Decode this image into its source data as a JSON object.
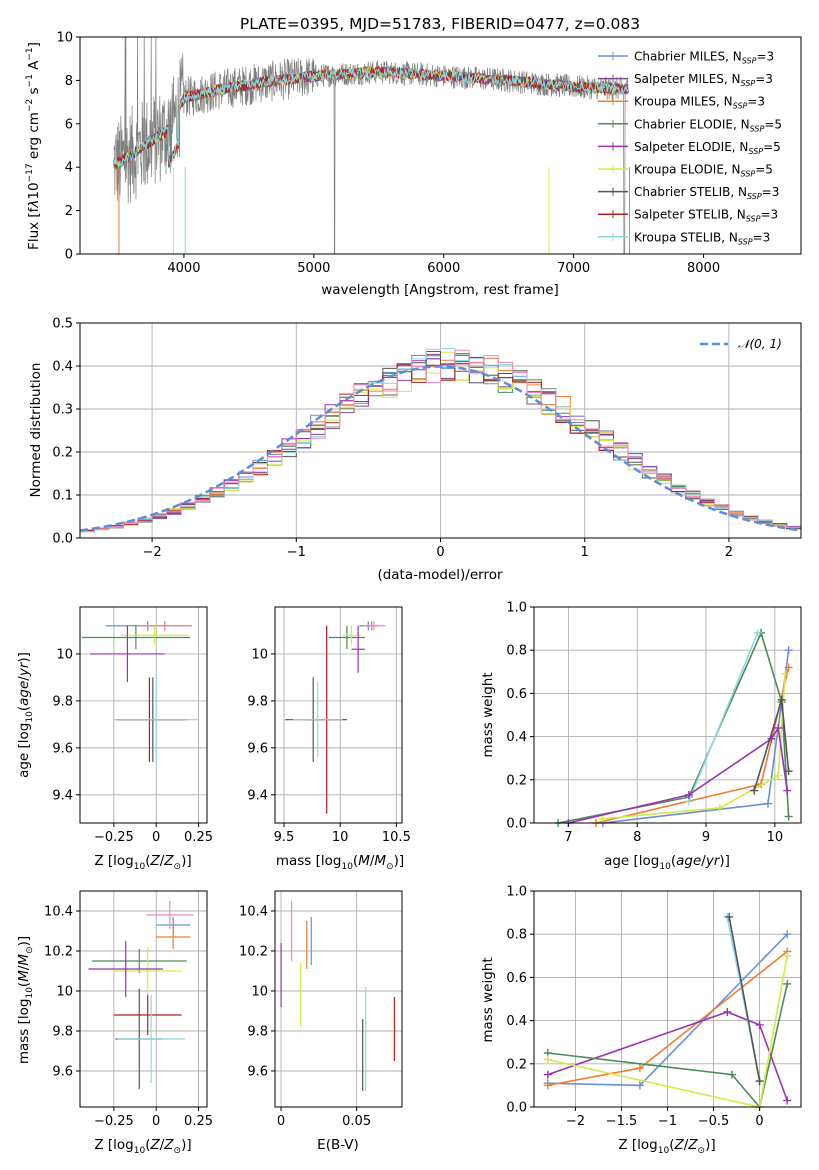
{
  "title": "PLATE=0395, MJD=51783, FIBERID=0477, z=0.083",
  "colors": {
    "chabrier_miles": "#6b8fd6",
    "salpeter_miles": "#7b4a8a",
    "kroupa_miles": "#f07c30",
    "chabrier_elodie": "#4e8a5a",
    "salpeter_elodie": "#9a32b5",
    "kroupa_elodie": "#d6e84a",
    "chabrier_stelib": "#555555",
    "salpeter_stelib": "#b22020",
    "kroupa_stelib": "#8fd8e0",
    "data": "#808080",
    "normal_curve": "#5b8fd6",
    "pink": "#ee88bb"
  },
  "chart_data": [
    {
      "id": "spectrum",
      "type": "line",
      "xlabel": "wavelength [Angstrom, rest frame]",
      "ylabel": "Flux [fλ10⁻¹⁷ erg cm⁻² s⁻¹ A⁻¹]",
      "xlim": [
        3200,
        8750
      ],
      "ylim": [
        0,
        10
      ],
      "xticks": [
        4000,
        5000,
        6000,
        7000,
        8000
      ],
      "yticks": [
        0,
        2,
        4,
        6,
        8,
        10
      ],
      "legend_position": "upper-right",
      "series": [
        {
          "name": "Chabrier MILES, N_SSP=3",
          "color_key": "chabrier_miles"
        },
        {
          "name": "Salpeter MILES, N_SSP=3",
          "color_key": "salpeter_miles"
        },
        {
          "name": "Kroupa MILES, N_SSP=3",
          "color_key": "kroupa_miles"
        },
        {
          "name": "Chabrier ELODIE, N_SSP=5",
          "color_key": "chabrier_elodie"
        },
        {
          "name": "Salpeter ELODIE, N_SSP=5",
          "color_key": "salpeter_elodie"
        },
        {
          "name": "Kroupa ELODIE, N_SSP=5",
          "color_key": "kroupa_elodie"
        },
        {
          "name": "Chabrier STELIB, N_SSP=3",
          "color_key": "chabrier_stelib"
        },
        {
          "name": "Salpeter STELIB, N_SSP=3",
          "color_key": "salpeter_stelib"
        },
        {
          "name": "Kroupa STELIB, N_SSP=3",
          "color_key": "kroupa_stelib"
        }
      ],
      "continuum_x": [
        3500,
        3700,
        3900,
        4000,
        4300,
        4600,
        5000,
        5500,
        6000,
        6500,
        7000,
        7400
      ],
      "continuum_y": [
        4.2,
        5.0,
        5.8,
        7.2,
        7.6,
        7.9,
        8.2,
        8.4,
        8.2,
        8.0,
        7.7,
        7.6
      ]
    },
    {
      "id": "residuals",
      "type": "line",
      "xlabel": "(data-model)/error",
      "ylabel": "Normed distribution",
      "xlim": [
        -2.5,
        2.5
      ],
      "ylim": [
        0,
        0.5
      ],
      "xticks": [
        -2,
        -1,
        0,
        1,
        2
      ],
      "yticks": [
        0.0,
        0.1,
        0.2,
        0.3,
        0.4,
        0.5
      ],
      "legend": "𝒩(0, 1)",
      "grid": true,
      "bin_width": 0.1
    },
    {
      "id": "age_vs_z",
      "type": "scatter",
      "xlabel": "Z [log₁₀(Z/Z⊙)]",
      "ylabel": "age  [log₁₀(age/yr)]",
      "xlim": [
        -0.45,
        0.3
      ],
      "ylim": [
        9.28,
        10.2
      ],
      "xticks": [
        -0.25,
        0.0,
        0.25
      ],
      "yticks": [
        9.4,
        9.6,
        9.8,
        10.0
      ],
      "grid": true,
      "points": [
        {
          "x": -0.05,
          "y": 10.12,
          "xerr": 0.25,
          "yerr": 0.02,
          "c": "chabrier_miles"
        },
        {
          "x": 0.05,
          "y": 10.12,
          "xerr": 0.16,
          "yerr": 0.02,
          "c": "kroupa_miles"
        },
        {
          "x": 0.05,
          "y": 10.12,
          "xerr": 0.16,
          "yerr": 0.02,
          "c": "pink"
        },
        {
          "x": -0.12,
          "y": 10.07,
          "xerr": 0.32,
          "yerr": 0.05,
          "c": "chabrier_elodie"
        },
        {
          "x": -0.01,
          "y": 10.08,
          "xerr": 0.2,
          "yerr": 0.04,
          "c": "kroupa_elodie"
        },
        {
          "x": -0.17,
          "y": 10.0,
          "xerr": 0.22,
          "yerr": 0.12,
          "c": "salpeter_elodie"
        },
        {
          "x": -0.02,
          "y": 9.72,
          "xerr": 0.2,
          "yerr": 0.18,
          "c": "chabrier_stelib"
        },
        {
          "x": -0.04,
          "y": 9.72,
          "xerr": 0.2,
          "yerr": 0.18,
          "c": "salpeter_stelib"
        },
        {
          "x": 0.0,
          "y": 9.72,
          "xerr": 0.25,
          "yerr": 0.18,
          "c": "kroupa_stelib"
        }
      ]
    },
    {
      "id": "age_vs_mass",
      "type": "scatter",
      "xlabel": "mass [log₁₀(M/M⊙)]",
      "ylabel": "",
      "xlim": [
        9.42,
        10.55
      ],
      "ylim": [
        9.28,
        10.2
      ],
      "xticks": [
        9.5,
        10.0,
        10.5
      ],
      "yticks": [
        9.4,
        9.6,
        9.8,
        10.0
      ],
      "grid": true,
      "points": [
        {
          "x": 10.25,
          "y": 10.12,
          "xerr": 0.08,
          "yerr": 0.02,
          "c": "chabrier_miles"
        },
        {
          "x": 10.28,
          "y": 10.12,
          "xerr": 0.06,
          "yerr": 0.02,
          "c": "kroupa_miles"
        },
        {
          "x": 10.3,
          "y": 10.12,
          "xerr": 0.1,
          "yerr": 0.02,
          "c": "pink"
        },
        {
          "x": 10.06,
          "y": 10.07,
          "xerr": 0.16,
          "yerr": 0.05,
          "c": "chabrier_elodie"
        },
        {
          "x": 10.1,
          "y": 10.08,
          "xerr": 0.08,
          "yerr": 0.04,
          "c": "kroupa_elodie"
        },
        {
          "x": 10.16,
          "y": 10.02,
          "xerr": 0.06,
          "yerr": 0.1,
          "c": "salpeter_elodie"
        },
        {
          "x": 9.76,
          "y": 9.72,
          "xerr": 0.25,
          "yerr": 0.18,
          "c": "chabrier_stelib"
        },
        {
          "x": 9.88,
          "y": 9.72,
          "xerr": 0.18,
          "yerr": 0.4,
          "c": "salpeter_stelib"
        },
        {
          "x": 9.8,
          "y": 9.72,
          "xerr": 0.22,
          "yerr": 0.16,
          "c": "kroupa_stelib"
        }
      ]
    },
    {
      "id": "weight_vs_age",
      "type": "line",
      "xlabel": "age  [log₁₀(age/yr)]",
      "ylabel": "mass weight",
      "xlim": [
        6.5,
        10.38
      ],
      "ylim": [
        0,
        1
      ],
      "xticks": [
        7,
        8,
        9,
        10
      ],
      "yticks": [
        0.0,
        0.2,
        0.4,
        0.6,
        0.8,
        1.0
      ],
      "grid": true,
      "series": [
        {
          "c": "chabrier_miles",
          "x": [
            7.5,
            9.9,
            10.2
          ],
          "y": [
            0.0,
            0.09,
            0.8
          ]
        },
        {
          "c": "kroupa_miles",
          "x": [
            7.4,
            9.8,
            10.2
          ],
          "y": [
            0.0,
            0.18,
            0.72
          ]
        },
        {
          "c": "chabrier_elodie",
          "x": [
            6.85,
            8.75,
            9.8,
            10.1,
            10.2
          ],
          "y": [
            0.0,
            0.12,
            0.88,
            0.56,
            0.03
          ]
        },
        {
          "c": "kroupa_stelib",
          "x": [
            8.75,
            9.75
          ],
          "y": [
            0.1,
            0.88
          ]
        },
        {
          "c": "kroupa_elodie",
          "x": [
            7.5,
            9.2,
            10.05,
            10.15
          ],
          "y": [
            0.02,
            0.07,
            0.22,
            0.69
          ]
        },
        {
          "c": "salpeter_elodie",
          "x": [
            7.0,
            8.75,
            9.95,
            10.05,
            10.18
          ],
          "y": [
            0.0,
            0.13,
            0.39,
            0.44,
            0.15
          ]
        },
        {
          "c": "chabrier_stelib",
          "x": [
            9.7,
            10.1,
            10.2
          ],
          "y": [
            0.15,
            0.57,
            0.24
          ]
        }
      ]
    },
    {
      "id": "mass_vs_z",
      "type": "scatter",
      "xlabel": "Z [log₁₀(Z/Z⊙)]",
      "ylabel": "mass [log₁₀(M/M⊙)]",
      "xlim": [
        -0.45,
        0.3
      ],
      "ylim": [
        9.42,
        10.5
      ],
      "xticks": [
        -0.25,
        0.0,
        0.25
      ],
      "yticks": [
        9.6,
        9.8,
        10.0,
        10.2,
        10.4
      ],
      "grid": true,
      "points": [
        {
          "x": 0.1,
          "y": 10.33,
          "xerr": 0.1,
          "yerr": 0.04,
          "c": "chabrier_miles"
        },
        {
          "x": 0.1,
          "y": 10.27,
          "xerr": 0.1,
          "yerr": 0.06,
          "c": "kroupa_miles"
        },
        {
          "x": 0.08,
          "y": 10.38,
          "xerr": 0.14,
          "yerr": 0.07,
          "c": "pink"
        },
        {
          "x": -0.1,
          "y": 10.15,
          "xerr": 0.28,
          "yerr": 0.06,
          "c": "chabrier_elodie"
        },
        {
          "x": -0.05,
          "y": 10.1,
          "xerr": 0.2,
          "yerr": 0.12,
          "c": "kroupa_elodie"
        },
        {
          "x": -0.18,
          "y": 10.11,
          "xerr": 0.22,
          "yerr": 0.14,
          "c": "salpeter_elodie"
        },
        {
          "x": -0.1,
          "y": 9.76,
          "xerr": 0.14,
          "yerr": 0.25,
          "c": "chabrier_stelib"
        },
        {
          "x": -0.05,
          "y": 9.88,
          "xerr": 0.2,
          "yerr": 0.1,
          "c": "salpeter_stelib"
        },
        {
          "x": -0.03,
          "y": 9.76,
          "xerr": 0.2,
          "yerr": 0.22,
          "c": "kroupa_stelib"
        }
      ]
    },
    {
      "id": "mass_vs_ebv",
      "type": "scatter",
      "xlabel": "E(B-V)",
      "ylabel": "",
      "xlim": [
        -0.004,
        0.08
      ],
      "ylim": [
        9.42,
        10.5
      ],
      "xticks": [
        0.0,
        0.05
      ],
      "yticks": [
        9.6,
        9.8,
        10.0,
        10.2,
        10.4
      ],
      "grid": true,
      "points": [
        {
          "x": 0.0,
          "y": 10.08,
          "yerr": 0.16,
          "c": "salpeter_elodie"
        },
        {
          "x": 0.007,
          "y": 10.3,
          "yerr": 0.15,
          "c": "pink"
        },
        {
          "x": 0.013,
          "y": 9.98,
          "yerr": 0.16,
          "c": "kroupa_elodie"
        },
        {
          "x": 0.017,
          "y": 10.23,
          "yerr": 0.12,
          "c": "kroupa_miles"
        },
        {
          "x": 0.02,
          "y": 10.25,
          "yerr": 0.12,
          "c": "chabrier_miles"
        },
        {
          "x": 0.054,
          "y": 9.68,
          "yerr": 0.18,
          "c": "chabrier_stelib"
        },
        {
          "x": 0.056,
          "y": 9.76,
          "yerr": 0.26,
          "c": "kroupa_stelib"
        },
        {
          "x": 0.075,
          "y": 9.81,
          "yerr": 0.16,
          "c": "salpeter_stelib"
        }
      ]
    },
    {
      "id": "weight_vs_z",
      "type": "line",
      "xlabel": "Z [log₁₀(Z/Z⊙)]",
      "ylabel": "mass weight",
      "xlim": [
        -2.45,
        0.45
      ],
      "ylim": [
        0,
        1
      ],
      "xticks": [
        -2.0,
        -1.5,
        -1.0,
        -0.5,
        0.0
      ],
      "yticks": [
        0.0,
        0.2,
        0.4,
        0.6,
        0.8,
        1.0
      ],
      "grid": true,
      "series": [
        {
          "c": "chabrier_miles",
          "x": [
            -2.3,
            -1.3,
            0.3
          ],
          "y": [
            0.11,
            0.1,
            0.8
          ]
        },
        {
          "c": "kroupa_miles",
          "x": [
            -2.3,
            -1.3,
            0.3
          ],
          "y": [
            0.1,
            0.18,
            0.72
          ]
        },
        {
          "c": "salpeter_elodie",
          "x": [
            -2.3,
            -0.35,
            0.0,
            0.3
          ],
          "y": [
            0.15,
            0.44,
            0.38,
            0.03
          ]
        },
        {
          "c": "chabrier_elodie",
          "x": [
            -2.3,
            -0.3,
            0.0,
            0.3
          ],
          "y": [
            0.25,
            0.15,
            0.0,
            0.57
          ]
        },
        {
          "c": "kroupa_elodie",
          "x": [
            -2.3,
            0.0,
            0.3
          ],
          "y": [
            0.22,
            0.0,
            0.7
          ]
        },
        {
          "c": "kroupa_stelib",
          "x": [
            -0.35,
            0.0
          ],
          "y": [
            0.88,
            0.12
          ]
        },
        {
          "c": "chabrier_stelib",
          "x": [
            -0.33,
            0.0
          ],
          "y": [
            0.88,
            0.12
          ]
        }
      ]
    }
  ]
}
